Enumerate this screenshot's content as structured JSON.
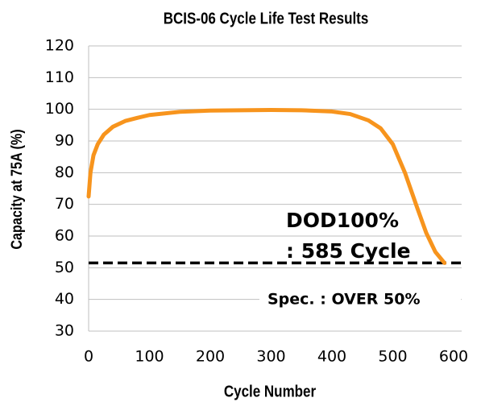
{
  "chart_data": {
    "type": "line",
    "title": "BCIS-06 Cycle Life Test Results",
    "xlabel": "Cycle Number",
    "ylabel": "Capacity at 75A (%)",
    "x": [
      0,
      3,
      8,
      15,
      25,
      40,
      60,
      80,
      100,
      150,
      200,
      250,
      300,
      350,
      400,
      430,
      460,
      480,
      500,
      520,
      540,
      555,
      570,
      585
    ],
    "values": [
      72.5,
      80,
      85.5,
      89,
      92,
      94.5,
      96.3,
      97.3,
      98.2,
      99.2,
      99.6,
      99.7,
      99.8,
      99.7,
      99.3,
      98.5,
      96.5,
      94,
      89,
      80,
      69,
      61,
      55,
      51.5
    ],
    "color": "#f7941d",
    "reference_line": {
      "value": 51.5,
      "color": "#000000",
      "dashed": true
    },
    "annotations": [
      "DOD100%",
      ": 585 Cycle",
      "Spec. : OVER 50%"
    ],
    "xlim": [
      0,
      600
    ],
    "xticks": [
      0,
      100,
      200,
      300,
      400,
      500,
      600
    ],
    "ylim": [
      30,
      120
    ],
    "yticks": [
      30,
      40,
      50,
      60,
      70,
      80,
      90,
      100,
      110,
      120
    ],
    "grid": true
  }
}
